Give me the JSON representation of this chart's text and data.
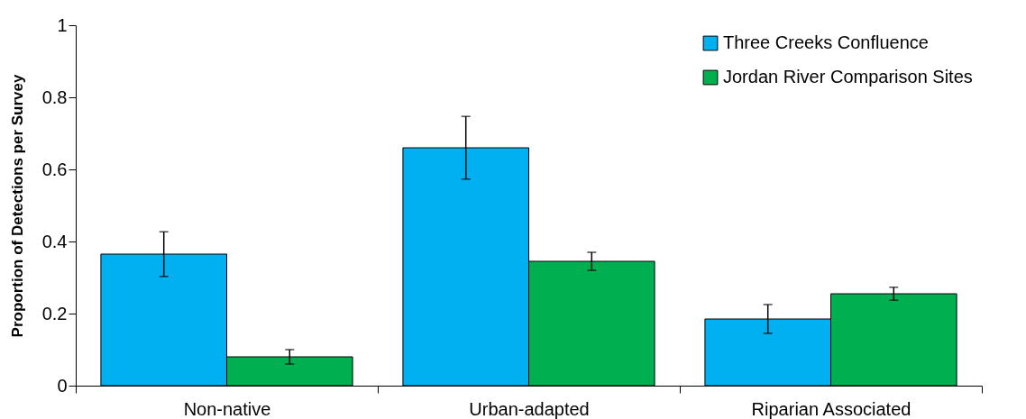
{
  "chart_data": {
    "type": "bar",
    "ylabel": "Proportion of Detections per Survey",
    "categories": [
      "Non-native",
      "Urban-adapted",
      "Riparian Associated"
    ],
    "series": [
      {
        "name": "Three Creeks Confluence",
        "color": "#00b0f0",
        "values": [
          0.365,
          0.66,
          0.185
        ],
        "errors": [
          0.062,
          0.087,
          0.04
        ]
      },
      {
        "name": "Jordan River Comparison Sites",
        "color": "#00b050",
        "values": [
          0.08,
          0.345,
          0.255
        ],
        "errors": [
          0.02,
          0.025,
          0.018
        ]
      }
    ],
    "ylim": [
      0,
      1
    ],
    "yticks": [
      0,
      0.2,
      0.4,
      0.6,
      0.8,
      1
    ],
    "grid": false,
    "legend": "top right"
  }
}
